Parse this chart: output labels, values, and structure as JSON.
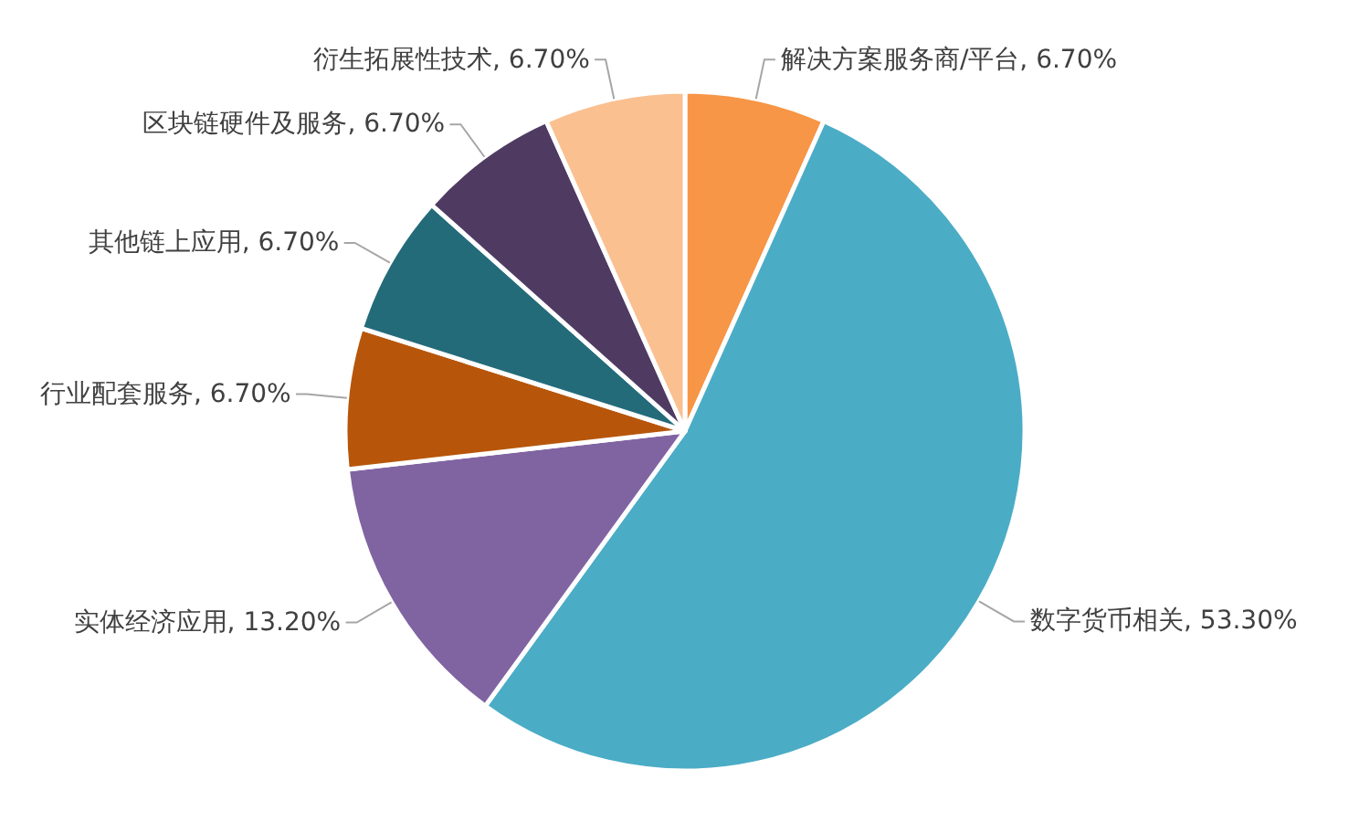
{
  "chart_data": {
    "type": "pie",
    "categories": [
      "解决方案服务商/平台",
      "数字货币相关",
      "实体经济应用",
      "行业配套服务",
      "其他链上应用",
      "区块链硬件及服务",
      "衍生拓展性技术"
    ],
    "values": [
      6.7,
      53.3,
      13.2,
      6.7,
      6.7,
      6.7,
      6.7
    ],
    "value_labels": [
      "6.70%",
      "53.30%",
      "13.20%",
      "6.70%",
      "6.70%",
      "6.70%",
      "6.70%"
    ],
    "colors": [
      "#f79646",
      "#4bacc6",
      "#8064a2",
      "#b7560a",
      "#246b7a",
      "#4f3b62",
      "#fac090"
    ],
    "legend": false
  }
}
